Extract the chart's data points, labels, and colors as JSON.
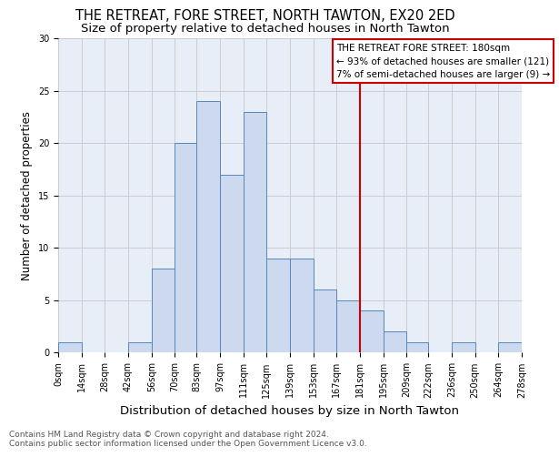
{
  "title": "THE RETREAT, FORE STREET, NORTH TAWTON, EX20 2ED",
  "subtitle": "Size of property relative to detached houses in North Tawton",
  "xlabel": "Distribution of detached houses by size in North Tawton",
  "ylabel": "Number of detached properties",
  "bar_values": [
    1,
    0,
    0,
    1,
    8,
    20,
    24,
    17,
    23,
    9,
    9,
    6,
    5,
    4,
    2,
    1,
    0,
    1,
    0,
    1
  ],
  "bin_edges": [
    0,
    14,
    28,
    42,
    56,
    70,
    83,
    97,
    111,
    125,
    139,
    153,
    167,
    181,
    195,
    209,
    222,
    236,
    250,
    264,
    278
  ],
  "tick_labels": [
    "0sqm",
    "14sqm",
    "28sqm",
    "42sqm",
    "56sqm",
    "70sqm",
    "83sqm",
    "97sqm",
    "111sqm",
    "125sqm",
    "139sqm",
    "153sqm",
    "167sqm",
    "181sqm",
    "195sqm",
    "209sqm",
    "222sqm",
    "236sqm",
    "250sqm",
    "264sqm",
    "278sqm"
  ],
  "bar_color": "#cdd9ee",
  "bar_edge_color": "#5588bb",
  "grid_color": "#cccccc",
  "bg_color": "#e8eef8",
  "fig_bg_color": "#ffffff",
  "vline_x": 181,
  "vline_color": "#cc0000",
  "annotation_text": "THE RETREAT FORE STREET: 180sqm\n← 93% of detached houses are smaller (121)\n7% of semi-detached houses are larger (9) →",
  "annotation_box_color": "#cc0000",
  "ylim": [
    0,
    30
  ],
  "yticks": [
    0,
    5,
    10,
    15,
    20,
    25,
    30
  ],
  "footnote1": "Contains HM Land Registry data © Crown copyright and database right 2024.",
  "footnote2": "Contains public sector information licensed under the Open Government Licence v3.0.",
  "title_fontsize": 10.5,
  "subtitle_fontsize": 9.5,
  "ylabel_fontsize": 8.5,
  "xlabel_fontsize": 9.5,
  "tick_fontsize": 7,
  "annotation_fontsize": 7.5,
  "footnote_fontsize": 6.5
}
